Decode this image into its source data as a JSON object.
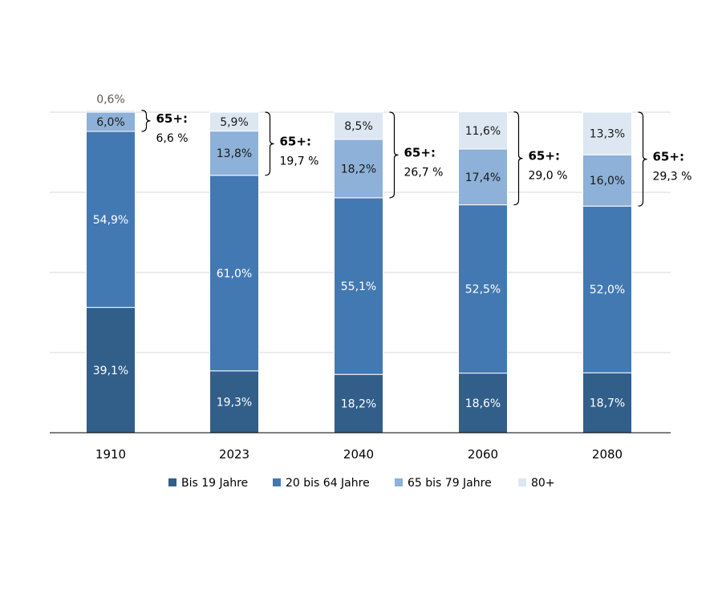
{
  "chart_data": {
    "type": "bar",
    "stacked": true,
    "percent": true,
    "categories": [
      "1910",
      "2023",
      "2040",
      "2060",
      "2080"
    ],
    "series": [
      {
        "name": "Bis 19 Jahre",
        "color": "#325E8A",
        "label_color": "#ffffff",
        "values": [
          39.1,
          19.3,
          18.2,
          18.6,
          18.7
        ],
        "labels": [
          "39,1%",
          "19,3%",
          "18,2%",
          "18,6%",
          "18,7%"
        ]
      },
      {
        "name": "20 bis 64 Jahre",
        "color": "#4379B3",
        "label_color": "#ffffff",
        "values": [
          54.9,
          61.0,
          55.1,
          52.5,
          52.0
        ],
        "labels": [
          "54,9%",
          "61,0%",
          "55,1%",
          "52,5%",
          "52,0%"
        ]
      },
      {
        "name": "65 bis 79 Jahre",
        "color": "#8DB1D8",
        "label_color": "#1a1a1a",
        "values": [
          6.0,
          13.8,
          18.2,
          17.4,
          16.0
        ],
        "labels": [
          "6,0%",
          "13,8%",
          "18,2%",
          "17,4%",
          "16,0%"
        ]
      },
      {
        "name": "80+",
        "color": "#DCE7F2",
        "label_color": "#1a1a1a",
        "values": [
          0.6,
          5.9,
          8.5,
          11.6,
          13.3
        ],
        "labels": [
          "0,6%",
          "5,9%",
          "8,5%",
          "11,6%",
          "13,3%"
        ]
      }
    ],
    "annotations": [
      {
        "category": "1910",
        "title": "65+:",
        "value": "6,6 %"
      },
      {
        "category": "2023",
        "title": "65+:",
        "value": "19,7 %"
      },
      {
        "category": "2040",
        "title": "65+:",
        "value": "26,7 %"
      },
      {
        "category": "2060",
        "title": "65+:",
        "value": "29,0 %"
      },
      {
        "category": "2080",
        "title": "65+:",
        "value": "29,3 %"
      }
    ],
    "ylim": [
      0,
      100
    ],
    "grid": true,
    "legend": "bottom",
    "xlabel": "",
    "ylabel": "",
    "title": ""
  }
}
